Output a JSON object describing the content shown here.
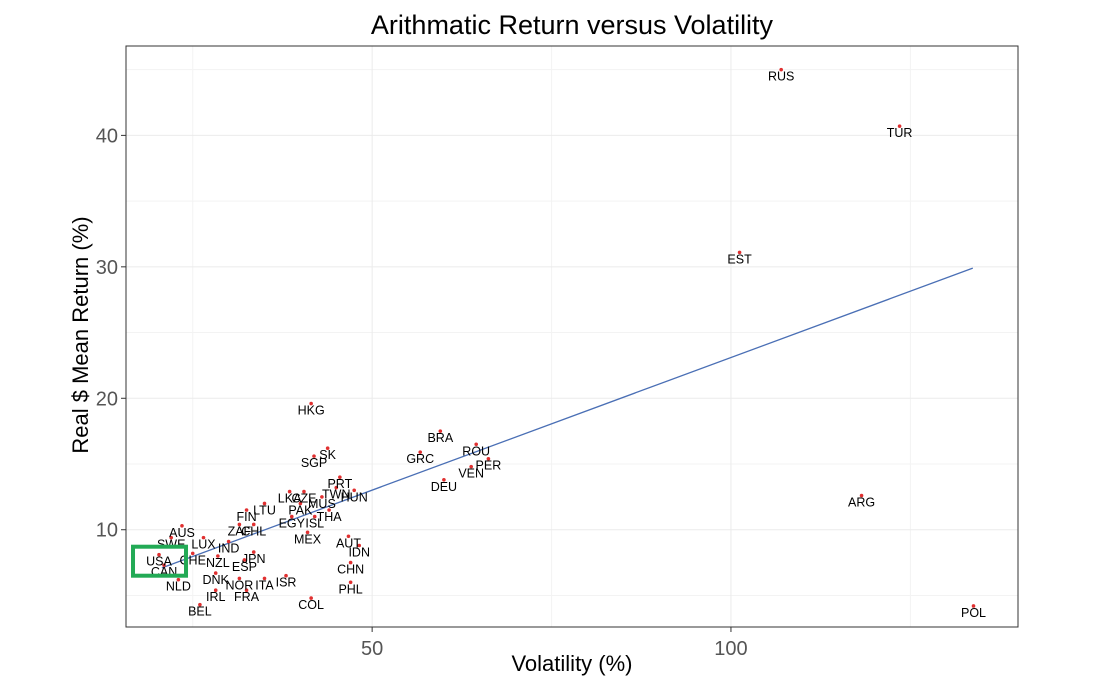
{
  "chart_data": {
    "type": "scatter",
    "title": "Arithmatic Return versus Volatility",
    "xlabel": "Volatility (%)",
    "ylabel": "Real $ Mean Return (%)",
    "xlim": [
      15.7,
      140
    ],
    "ylim": [
      2.6,
      46.8
    ],
    "x_ticks": [
      50,
      100
    ],
    "y_ticks": [
      10,
      20,
      30,
      40
    ],
    "grid": true,
    "points": [
      {
        "label": "RUS",
        "x": 107.0,
        "y": 45.0
      },
      {
        "label": "TUR",
        "x": 123.5,
        "y": 40.7
      },
      {
        "label": "EST",
        "x": 101.2,
        "y": 31.1
      },
      {
        "label": "ARG",
        "x": 118.2,
        "y": 12.6
      },
      {
        "label": "POL",
        "x": 133.8,
        "y": 4.2
      },
      {
        "label": "HKG",
        "x": 41.5,
        "y": 19.6
      },
      {
        "label": "BRA",
        "x": 59.5,
        "y": 17.5
      },
      {
        "label": "ROU",
        "x": 64.5,
        "y": 16.5
      },
      {
        "label": "SK",
        "x": 43.8,
        "y": 16.2
      },
      {
        "label": "GRC",
        "x": 56.7,
        "y": 15.9
      },
      {
        "label": "SGP",
        "x": 41.9,
        "y": 15.6
      },
      {
        "label": "PER",
        "x": 66.2,
        "y": 15.4
      },
      {
        "label": "VEN",
        "x": 63.8,
        "y": 14.8
      },
      {
        "label": "PRT",
        "x": 45.5,
        "y": 14.0
      },
      {
        "label": "DEU",
        "x": 60.0,
        "y": 13.8
      },
      {
        "label": "TWN",
        "x": 45.0,
        "y": 13.2
      },
      {
        "label": "HUN",
        "x": 47.5,
        "y": 13.0
      },
      {
        "label": "LKA",
        "x": 38.5,
        "y": 12.9
      },
      {
        "label": "CZE",
        "x": 40.5,
        "y": 12.9
      },
      {
        "label": "MUS",
        "x": 43.0,
        "y": 12.5
      },
      {
        "label": "LTU",
        "x": 35.0,
        "y": 12.0
      },
      {
        "label": "PAK",
        "x": 40.0,
        "y": 12.0
      },
      {
        "label": "FIN",
        "x": 32.5,
        "y": 11.5
      },
      {
        "label": "THA",
        "x": 44.0,
        "y": 11.5
      },
      {
        "label": "EGY",
        "x": 38.8,
        "y": 11.0
      },
      {
        "label": "ISL",
        "x": 42.0,
        "y": 11.0
      },
      {
        "label": "ZAF",
        "x": 31.5,
        "y": 10.4
      },
      {
        "label": "CHL",
        "x": 33.5,
        "y": 10.4
      },
      {
        "label": "AUS",
        "x": 23.5,
        "y": 10.3
      },
      {
        "label": "AUT",
        "x": 46.7,
        "y": 9.5
      },
      {
        "label": "MEX",
        "x": 41.0,
        "y": 9.8
      },
      {
        "label": "LUX",
        "x": 26.5,
        "y": 9.4
      },
      {
        "label": "SWE",
        "x": 22.0,
        "y": 9.4
      },
      {
        "label": "IND",
        "x": 30.0,
        "y": 9.1
      },
      {
        "label": "IDN",
        "x": 48.2,
        "y": 8.8
      },
      {
        "label": "JPN",
        "x": 33.5,
        "y": 8.3
      },
      {
        "label": "CHE",
        "x": 25.0,
        "y": 8.2
      },
      {
        "label": "USA",
        "x": 20.3,
        "y": 8.1
      },
      {
        "label": "NZL",
        "x": 28.5,
        "y": 8.0
      },
      {
        "label": "ESP",
        "x": 32.2,
        "y": 7.7
      },
      {
        "label": "CHN",
        "x": 47.0,
        "y": 7.5
      },
      {
        "label": "CAN",
        "x": 21.0,
        "y": 7.3
      },
      {
        "label": "DNK",
        "x": 28.2,
        "y": 6.7
      },
      {
        "label": "ISR",
        "x": 38.0,
        "y": 6.5
      },
      {
        "label": "NOR",
        "x": 31.5,
        "y": 6.3
      },
      {
        "label": "ITA",
        "x": 35.0,
        "y": 6.3
      },
      {
        "label": "NLD",
        "x": 23.0,
        "y": 6.2
      },
      {
        "label": "PHL",
        "x": 47.0,
        "y": 6.0
      },
      {
        "label": "IRL",
        "x": 28.2,
        "y": 5.4
      },
      {
        "label": "FRA",
        "x": 32.5,
        "y": 5.4
      },
      {
        "label": "COL",
        "x": 41.5,
        "y": 4.8
      },
      {
        "label": "BEL",
        "x": 26.0,
        "y": 4.3
      }
    ],
    "trend_line": {
      "x": [
        20.7,
        133.7
      ],
      "y": [
        7.1,
        29.9
      ]
    },
    "highlight": {
      "label": "USA"
    },
    "colors": {
      "point": "#e03030",
      "trend": "#4a6fb5",
      "highlight": "#22aa55",
      "panel_border": "#333333"
    }
  }
}
